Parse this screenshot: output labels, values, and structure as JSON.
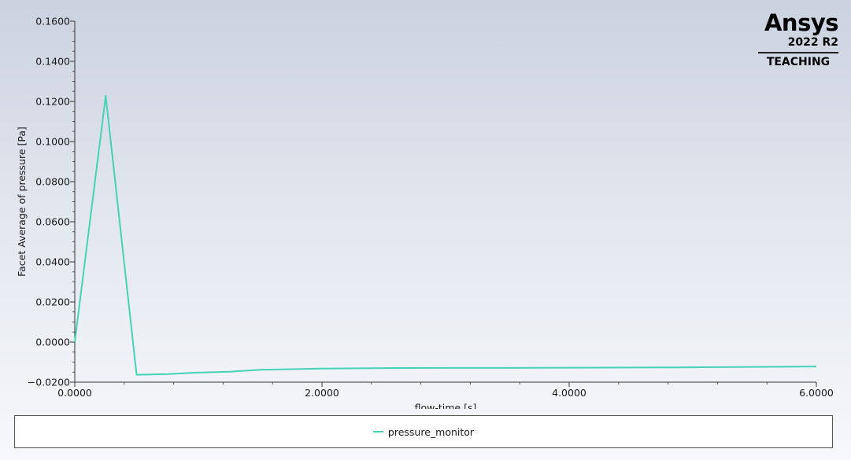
{
  "logo": {
    "word": "Ansys",
    "version": "2022 R2",
    "edition": "TEACHING"
  },
  "chart_data": {
    "type": "line",
    "xlabel": "flow-time [s]",
    "ylabel": "Facet Average of pressure [Pa]",
    "xlim": [
      0,
      6
    ],
    "ylim": [
      -0.02,
      0.16
    ],
    "x_ticks": [
      0,
      2,
      4,
      6
    ],
    "x_tick_labels": [
      "0.0000",
      "2.0000",
      "4.0000",
      "6.0000"
    ],
    "y_ticks": [
      -0.02,
      0,
      0.02,
      0.04,
      0.06,
      0.08,
      0.1,
      0.12,
      0.14,
      0.16
    ],
    "y_tick_labels": [
      "−0.0200",
      "0.0000",
      "0.0200",
      "0.0400",
      "0.0600",
      "0.0800",
      "0.1000",
      "0.1200",
      "0.1400",
      "0.1600"
    ],
    "x_minor_step": 0.4,
    "y_minor_step": 0.005,
    "legend_position": "bottom",
    "series": [
      {
        "name": "pressure_monitor",
        "color": "#46d2b4",
        "x": [
          0,
          0.25,
          0.5,
          0.75,
          1.0,
          1.25,
          1.5,
          2.0,
          2.5,
          3.0,
          3.5,
          4.0,
          4.5,
          5.0,
          5.5,
          6.0
        ],
        "y": [
          0,
          0.1228,
          -0.0163,
          -0.016,
          -0.0152,
          -0.0148,
          -0.0138,
          -0.0132,
          -0.013,
          -0.0129,
          -0.0129,
          -0.0128,
          -0.0127,
          -0.0126,
          -0.0124,
          -0.0122
        ]
      }
    ]
  }
}
